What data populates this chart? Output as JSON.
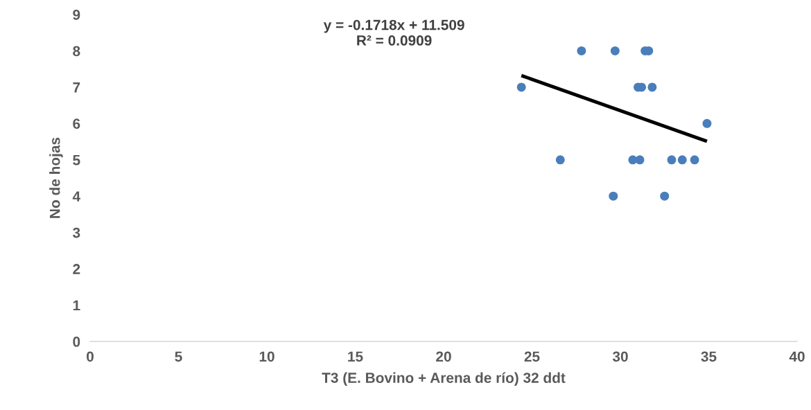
{
  "chart_data": {
    "type": "scatter",
    "xlabel": "T3 (E. Bovino + Arena de río) 32 ddt",
    "ylabel": "No de hojas",
    "annotations": [
      "y = -0.1718x + 11.509\nR² = 0.0909"
    ],
    "xlim": [
      0,
      40
    ],
    "xticks": [
      0,
      5,
      10,
      15,
      20,
      25,
      30,
      35,
      40
    ],
    "ylim": [
      0,
      9
    ],
    "yticks": [
      0,
      1,
      2,
      3,
      4,
      5,
      6,
      7,
      8,
      9
    ],
    "grid": false,
    "legend": false,
    "series": [
      {
        "marker": "circle",
        "color": "#4a7ebb",
        "x": [
          24.4,
          27.8,
          26.6,
          29.7,
          29.6,
          30.7,
          31.1,
          31.0,
          31.2,
          31.8,
          31.4,
          31.6,
          32.5,
          32.9,
          33.5,
          34.2,
          34.9
        ],
        "values": [
          7,
          8,
          5,
          8,
          4,
          5,
          5,
          7,
          7,
          7,
          8,
          8,
          4,
          5,
          5,
          5,
          6
        ]
      },
      {
        "type": "line",
        "color": "#000000",
        "x": [
          24.4,
          34.9
        ],
        "values": [
          7.32,
          5.51
        ],
        "line_style": "solid",
        "marker": "none"
      }
    ]
  }
}
